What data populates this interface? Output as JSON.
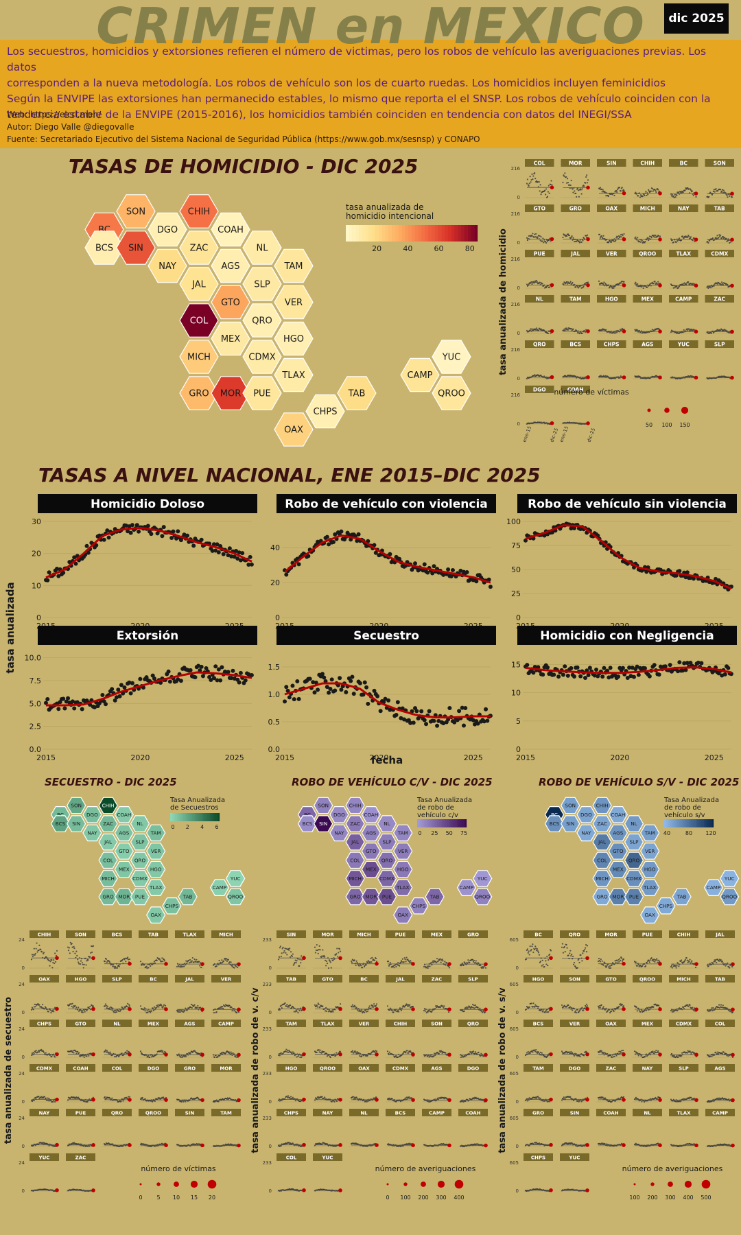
{
  "header": {
    "title": "CRIMEN en MEXICO",
    "date_badge": "dic 2025",
    "description_lines": [
      "Los secuestros, homicidios y extorsiones refieren el número de victimas, pero los robos de vehículo las averiguaciones previas. Los datos",
      "corresponden a la nueva metodología. Los robos de vehículo son los de cuarto ruedas. Los homicidios incluyen feminicidios",
      "Según la ENVIPE las extorsiones han permanecido estables, lo mismo que reporta el el SNSP. Los robos de vehículo coinciden con la",
      "tendencia estable de la ENVIPE (2015-2016), los homicidios también coinciden en tendencia con datos del INEGI/SSA"
    ],
    "web": "Web: https://elcri.men/",
    "author": "Autor: Diego Valle @diegovalle",
    "source": "Fuente: Secretariado Ejecutivo del Sistema Nacional de Seguridad Pública (https://www.gob.mx/sesnsp) y CONAPO"
  },
  "hex_layout": [
    {
      "s": "SON",
      "c": 1,
      "r": 0
    },
    {
      "s": "CHIH",
      "c": 3,
      "r": 0
    },
    {
      "s": "BC",
      "c": 0,
      "r": 1
    },
    {
      "s": "DGO",
      "c": 2,
      "r": 1
    },
    {
      "s": "COAH",
      "c": 4,
      "r": 1
    },
    {
      "s": "BCS",
      "c": 0,
      "r": 2
    },
    {
      "s": "SIN",
      "c": 1,
      "r": 2
    },
    {
      "s": "ZAC",
      "c": 3,
      "r": 2
    },
    {
      "s": "NL",
      "c": 5,
      "r": 2
    },
    {
      "s": "NAY",
      "c": 2,
      "r": 3
    },
    {
      "s": "AGS",
      "c": 4,
      "r": 3
    },
    {
      "s": "TAM",
      "c": 6,
      "r": 3
    },
    {
      "s": "JAL",
      "c": 3,
      "r": 4
    },
    {
      "s": "SLP",
      "c": 5,
      "r": 4
    },
    {
      "s": "GTO",
      "c": 4,
      "r": 5
    },
    {
      "s": "VER",
      "c": 6,
      "r": 5
    },
    {
      "s": "COL",
      "c": 3,
      "r": 6
    },
    {
      "s": "QRO",
      "c": 5,
      "r": 6
    },
    {
      "s": "MEX",
      "c": 4,
      "r": 7
    },
    {
      "s": "HGO",
      "c": 6,
      "r": 7
    },
    {
      "s": "MICH",
      "c": 3,
      "r": 8
    },
    {
      "s": "CDMX",
      "c": 5,
      "r": 8
    },
    {
      "s": "YUC",
      "c": 11,
      "r": 8
    },
    {
      "s": "TLAX",
      "c": 6,
      "r": 9
    },
    {
      "s": "CAMP",
      "c": 10,
      "r": 9
    },
    {
      "s": "GRO",
      "c": 3,
      "r": 10
    },
    {
      "s": "MOR",
      "c": 4,
      "r": 10
    },
    {
      "s": "PUE",
      "c": 5,
      "r": 10
    },
    {
      "s": "TAB",
      "c": 8,
      "r": 10
    },
    {
      "s": "QROO",
      "c": 11,
      "r": 10
    },
    {
      "s": "CHPS",
      "c": 7,
      "r": 11
    },
    {
      "s": "OAX",
      "c": 6,
      "r": 12
    }
  ],
  "homicide_map": {
    "title": "TASAS DE HOMICIDIO - DIC 2025",
    "legend_title_1": "tasa anualizada de",
    "legend_title_2": "homicidio intencional",
    "legend_ticks": [
      "20",
      "40",
      "60",
      "80"
    ],
    "max": 85,
    "values": {
      "SON": 32,
      "CHIH": 50,
      "BC": 48,
      "DGO": 6,
      "COAH": 4,
      "BCS": 7,
      "SIN": 58,
      "ZAC": 14,
      "NL": 9,
      "NAY": 18,
      "AGS": 7,
      "TAM": 12,
      "JAL": 15,
      "SLP": 10,
      "GTO": 36,
      "VER": 12,
      "COL": 85,
      "QRO": 6,
      "MEX": 10,
      "HGO": 6,
      "MICH": 24,
      "CDMX": 9,
      "YUC": 2,
      "TLAX": 9,
      "CAMP": 14,
      "GRO": 30,
      "MOR": 65,
      "PUE": 12,
      "TAB": 18,
      "QROO": 12,
      "CHPS": 6,
      "OAX": 22
    },
    "small_multiples": {
      "ylabel": "tasa anualizada de homicidio",
      "ymax_label": "216",
      "states": [
        "COL",
        "MOR",
        "SIN",
        "CHIH",
        "BC",
        "SON",
        "GTO",
        "GRO",
        "OAX",
        "MICH",
        "NAY",
        "TAB",
        "PUE",
        "JAL",
        "VER",
        "QROO",
        "TLAX",
        "CDMX",
        "NL",
        "TAM",
        "HGO",
        "MEX",
        "CAMP",
        "ZAC",
        "QRO",
        "BCS",
        "CHPS",
        "AGS",
        "YUC",
        "SLP",
        "DGO",
        "COAH"
      ],
      "xticks": [
        "ene-15",
        "dic-25"
      ],
      "size_legend_title": "número de víctimas",
      "size_legend": [
        "50",
        "100",
        "150"
      ]
    }
  },
  "national": {
    "title": "TASAS A NIVEL NACIONAL, ENE 2015–DIC 2025",
    "ylabel": "tasa anualizada",
    "xlabel": "fecha",
    "panels": [
      {
        "title": "Homicidio Doloso",
        "yticks": [
          "0",
          "10",
          "20",
          "30"
        ]
      },
      {
        "title": "Robo de vehículo con violencia",
        "yticks": [
          "0",
          "20",
          "40"
        ]
      },
      {
        "title": "Robo de vehículo sin violencia",
        "yticks": [
          "0",
          "25",
          "50",
          "75",
          "100"
        ]
      },
      {
        "title": "Extorsión",
        "yticks": [
          "0.0",
          "2.5",
          "5.0",
          "7.5",
          "10.0"
        ]
      },
      {
        "title": "Secuestro",
        "yticks": [
          "0.0",
          "0.5",
          "1.0",
          "1.5"
        ]
      },
      {
        "title": "Homicidio con Negligencia",
        "yticks": [
          "0",
          "5",
          "10",
          "15"
        ]
      }
    ],
    "xticks": [
      "2015",
      "2020",
      "2025"
    ]
  },
  "chart_data": [
    {
      "type": "scatter",
      "title": "Homicidio Doloso",
      "x_range": [
        2015.0,
        2025.92
      ],
      "ylim": [
        0,
        30
      ],
      "trend": [
        [
          2015,
          12.5
        ],
        [
          2016,
          15
        ],
        [
          2017,
          20
        ],
        [
          2018,
          25.5
        ],
        [
          2019,
          27.5
        ],
        [
          2020,
          28
        ],
        [
          2021,
          27.2
        ],
        [
          2022,
          25.5
        ],
        [
          2023,
          23.5
        ],
        [
          2024,
          22
        ],
        [
          2025,
          20
        ],
        [
          2025.9,
          17.5
        ]
      ],
      "noise": 1.5
    },
    {
      "type": "scatter",
      "title": "Robo de vehículo con violencia",
      "x_range": [
        2015.0,
        2025.92
      ],
      "ylim": [
        0,
        55
      ],
      "trend": [
        [
          2015,
          26
        ],
        [
          2016,
          35
        ],
        [
          2017,
          43
        ],
        [
          2018,
          47
        ],
        [
          2019,
          45
        ],
        [
          2020,
          38
        ],
        [
          2021,
          32
        ],
        [
          2022,
          29
        ],
        [
          2023,
          27
        ],
        [
          2024,
          25
        ],
        [
          2025,
          23
        ],
        [
          2025.9,
          20
        ]
      ],
      "noise": 2.5
    },
    {
      "type": "scatter",
      "title": "Robo de vehículo sin violencia",
      "x_range": [
        2015.0,
        2025.92
      ],
      "ylim": [
        0,
        100
      ],
      "trend": [
        [
          2015,
          82
        ],
        [
          2016,
          88
        ],
        [
          2017,
          96
        ],
        [
          2018,
          95
        ],
        [
          2019,
          80
        ],
        [
          2020,
          63
        ],
        [
          2021,
          52
        ],
        [
          2022,
          48
        ],
        [
          2023,
          46
        ],
        [
          2024,
          43
        ],
        [
          2025,
          38
        ],
        [
          2025.9,
          30
        ]
      ],
      "noise": 3
    },
    {
      "type": "scatter",
      "title": "Extorsión",
      "x_range": [
        2015.0,
        2025.92
      ],
      "ylim": [
        0,
        10.5
      ],
      "trend": [
        [
          2015,
          4.8
        ],
        [
          2016,
          4.8
        ],
        [
          2017,
          4.9
        ],
        [
          2018,
          5.5
        ],
        [
          2019,
          6.3
        ],
        [
          2020,
          6.9
        ],
        [
          2021,
          7.5
        ],
        [
          2022,
          8
        ],
        [
          2023,
          8.4
        ],
        [
          2024,
          8.3
        ],
        [
          2025,
          8.1
        ],
        [
          2025.9,
          7.8
        ]
      ],
      "noise": 0.8
    },
    {
      "type": "scatter",
      "title": "Secuestro",
      "x_range": [
        2015.0,
        2025.92
      ],
      "ylim": [
        0,
        1.75
      ],
      "trend": [
        [
          2015,
          1.0
        ],
        [
          2016,
          1.1
        ],
        [
          2017,
          1.2
        ],
        [
          2018,
          1.2
        ],
        [
          2019,
          1.1
        ],
        [
          2020,
          0.85
        ],
        [
          2021,
          0.72
        ],
        [
          2022,
          0.62
        ],
        [
          2023,
          0.58
        ],
        [
          2024,
          0.58
        ],
        [
          2025,
          0.6
        ],
        [
          2025.9,
          0.6
        ]
      ],
      "noise": 0.18
    },
    {
      "type": "scatter",
      "title": "Homicidio con Negligencia",
      "x_range": [
        2015.0,
        2025.92
      ],
      "ylim": [
        0,
        17
      ],
      "trend": [
        [
          2015,
          14.4
        ],
        [
          2016,
          14
        ],
        [
          2017,
          13.8
        ],
        [
          2018,
          13.6
        ],
        [
          2019,
          13.5
        ],
        [
          2020,
          13.5
        ],
        [
          2021,
          13.7
        ],
        [
          2022,
          14
        ],
        [
          2023,
          14.4
        ],
        [
          2024,
          14.5
        ],
        [
          2025,
          14.2
        ],
        [
          2025.9,
          13.6
        ]
      ],
      "noise": 1.0
    }
  ],
  "bottom_sections": [
    {
      "key": "sec",
      "title": "SECUESTRO - DIC 2025",
      "legend_title_1": "Tasa Anualizada",
      "legend_title_2": "de Secuestros",
      "legend_ticks": [
        "0",
        "2",
        "4",
        "6"
      ],
      "low": "#8fd6b4",
      "high": "#0a4b2a",
      "values": {
        "SON": 2.0,
        "CHIH": 6.0,
        "BC": 1.2,
        "DGO": 1.0,
        "COAH": 0.5,
        "BCS": 2.2,
        "SIN": 1.1,
        "ZAC": 1.3,
        "NL": 0.6,
        "NAY": 0.6,
        "AGS": 0.8,
        "TAM": 1.0,
        "JAL": 0.5,
        "SLP": 0.8,
        "GTO": 0.4,
        "VER": 0.7,
        "COL": 1.0,
        "QRO": 0.6,
        "MEX": 0.7,
        "HGO": 0.6,
        "MICH": 1.1,
        "CDMX": 0.5,
        "YUC": 0.1,
        "TLAX": 0.5,
        "CAMP": 0.3,
        "GRO": 1.2,
        "MOR": 1.5,
        "PUE": 0.6,
        "TAB": 1.3,
        "QROO": 0.7,
        "CHPS": 0.9,
        "OAX": 0.6
      },
      "ylabel": "tasa anualizada de secuestro",
      "ymax_label": "24",
      "states": [
        "CHIH",
        "SON",
        "BCS",
        "TAB",
        "TLAX",
        "MICH",
        "OAX",
        "HGO",
        "SLP",
        "BC",
        "JAL",
        "VER",
        "CHPS",
        "GTO",
        "NL",
        "MEX",
        "AGS",
        "CAMP",
        "CDMX",
        "COAH",
        "COL",
        "DGO",
        "GRO",
        "MOR",
        "NAY",
        "PUE",
        "QRO",
        "QROO",
        "SIN",
        "TAM",
        "YUC",
        "ZAC"
      ],
      "size_legend_title": "número de víctimas",
      "size_legend": [
        "0",
        "5",
        "10",
        "15",
        "20"
      ]
    },
    {
      "key": "rcv",
      "title": "ROBO DE VEHÍCULO C/V - DIC 2025",
      "legend_title_1": "Tasa Anualizada",
      "legend_title_2": "de robo de",
      "legend_title_3": "vehículo c/v",
      "legend_ticks": [
        "0",
        "25",
        "50",
        "75"
      ],
      "low": "#a29ad6",
      "high": "#3b0a52",
      "values": {
        "SON": 15,
        "CHIH": 12,
        "BC": 30,
        "DGO": 10,
        "COAH": 6,
        "BCS": 8,
        "SIN": 85,
        "ZAC": 20,
        "NL": 10,
        "NAY": 12,
        "AGS": 15,
        "TAM": 12,
        "JAL": 35,
        "SLP": 18,
        "GTO": 20,
        "VER": 18,
        "COL": 20,
        "QRO": 25,
        "MEX": 45,
        "HGO": 20,
        "MICH": 40,
        "CDMX": 30,
        "YUC": 2,
        "TLAX": 28,
        "CAMP": 5,
        "GRO": 30,
        "MOR": 40,
        "PUE": 45,
        "TAB": 30,
        "QROO": 15,
        "CHPS": 15,
        "OAX": 18
      },
      "ylabel": "tasa anualizada de robo de v. c/v",
      "ymax_label": "233",
      "states": [
        "SIN",
        "MOR",
        "MICH",
        "PUE",
        "MEX",
        "GRO",
        "TAB",
        "GTO",
        "BC",
        "JAL",
        "ZAC",
        "SLP",
        "TAM",
        "TLAX",
        "VER",
        "CHIH",
        "SON",
        "QRO",
        "HGO",
        "QROO",
        "OAX",
        "CDMX",
        "AGS",
        "DGO",
        "CHPS",
        "NAY",
        "NL",
        "BCS",
        "CAMP",
        "COAH",
        "COL",
        "YUC"
      ],
      "size_legend_title": "número de averiguaciones",
      "size_legend": [
        "0",
        "100",
        "200",
        "300",
        "400"
      ]
    },
    {
      "key": "rsv",
      "title": "ROBO DE VEHÍCULO S/V - DIC 2025",
      "legend_title_1": "Tasa Anualizada",
      "legend_title_2": "de robo de",
      "legend_title_3": "vehículo s/v",
      "legend_ticks": [
        "40",
        "80",
        "120"
      ],
      "low": "#8fb8e6",
      "high": "#0a2a52",
      "values": {
        "SON": 25,
        "CHIH": 35,
        "BC": 140,
        "DGO": 20,
        "COAH": 15,
        "BCS": 40,
        "SIN": 25,
        "ZAC": 20,
        "NL": 30,
        "NAY": 15,
        "AGS": 35,
        "TAM": 25,
        "JAL": 60,
        "SLP": 20,
        "GTO": 40,
        "VER": 20,
        "COL": 50,
        "QRO": 80,
        "MEX": 45,
        "HGO": 30,
        "MICH": 35,
        "CDMX": 40,
        "YUC": 5,
        "TLAX": 30,
        "CAMP": 8,
        "GRO": 15,
        "MOR": 55,
        "PUE": 55,
        "TAB": 20,
        "QROO": 30,
        "CHPS": 15,
        "OAX": 12
      },
      "ylabel": "tasa anualizada de robo de v. s/v",
      "ymax_label": "605",
      "states": [
        "BC",
        "QRO",
        "MOR",
        "PUE",
        "CHIH",
        "JAL",
        "HGO",
        "SON",
        "GTO",
        "QROO",
        "MICH",
        "TAB",
        "BCS",
        "VER",
        "OAX",
        "MEX",
        "CDMX",
        "COL",
        "TAM",
        "DGO",
        "ZAC",
        "NAY",
        "SLP",
        "AGS",
        "GRO",
        "SIN",
        "COAH",
        "NL",
        "TLAX",
        "CAMP",
        "CHPS",
        "YUC"
      ],
      "size_legend_title": "número de averiguaciones",
      "size_legend": [
        "100",
        "200",
        "300",
        "400",
        "500"
      ]
    }
  ]
}
